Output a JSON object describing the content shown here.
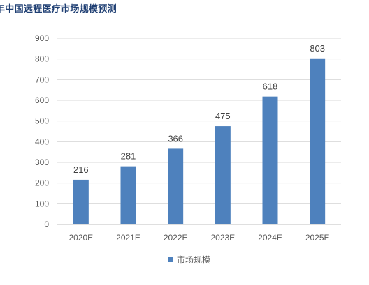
{
  "chart_data": {
    "type": "bar",
    "title": "年中国远程医疗市场规模预测",
    "categories": [
      "2020E",
      "2021E",
      "2022E",
      "2023E",
      "2024E",
      "2025E"
    ],
    "series": [
      {
        "name": "市场规模",
        "values": [
          216,
          281,
          366,
          475,
          618,
          803
        ]
      }
    ],
    "ylim": [
      0,
      900
    ],
    "yticks": [
      0,
      100,
      200,
      300,
      400,
      500,
      600,
      700,
      800,
      900
    ],
    "xlabel": "",
    "ylabel": "",
    "grid": true,
    "legend": "bottom",
    "bar_color": "#4e81bd",
    "grid_color": "#d9d9d9"
  }
}
